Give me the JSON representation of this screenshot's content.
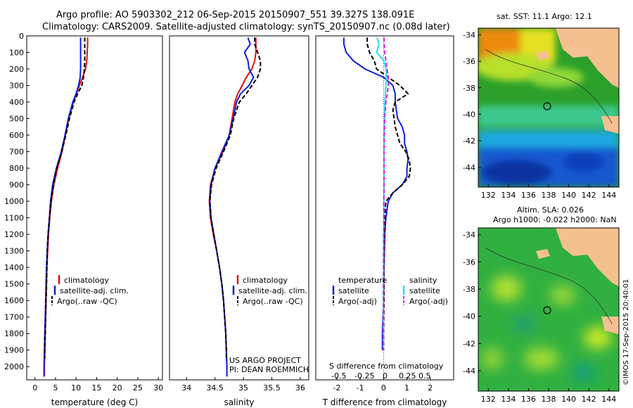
{
  "header": {
    "line1": "Argo profile: AO 5903302_212 06-Sep-2015 20150907_551 39.327S 138.091E",
    "line2": "Climatology: CARS2009. Satellite-adjusted climatology: synTS_20150907.nc (0.08d later)"
  },
  "colors": {
    "climatology": "#e01010",
    "satellite": "#1020d0",
    "argo": "#000000",
    "salinity_satellite": "#20e0f0",
    "salinity_argo": "#e020e0",
    "land": "#f4c090"
  },
  "legend1": {
    "climatology": "climatology",
    "satellite": "satellite-adj. clim.",
    "argo": "Argo(..raw -QC)"
  },
  "legend2": {
    "climatology": "climatology",
    "satellite": "satellite-adj. clim.",
    "argo": "Argo(..raw -QC)"
  },
  "legend3": {
    "temp_header": "temperature",
    "sal_header": "salinity",
    "temp_sat": "satellite",
    "temp_argo": "Argo(-adj)",
    "sal_sat": "satellite",
    "sal_argo": "Argo(-adj)"
  },
  "project": {
    "line1": "US ARGO PROJECT",
    "line2": "PI: DEAN ROEMMICH"
  },
  "sdiff_label": "S difference from climatology",
  "sdiff_ticks": [
    "-0.5",
    "-0.25",
    "0",
    "0.25",
    "0.5"
  ],
  "map1_title": "sat. SST: 11.1  Argo: 12.1",
  "map2_title1": "Altim. SLA: 0.026",
  "map2_title2": "Argo h1000: -0.022 h2000: NaN",
  "map_lon_ticks": [
    "132",
    "134",
    "136",
    "138",
    "140",
    "142",
    "144"
  ],
  "map_lat_ticks": [
    "-34",
    "-36",
    "-38",
    "-40",
    "-42",
    "-44"
  ],
  "watermark": "©IMOS 17-Sep-2015 20:40:01",
  "chart_data": [
    {
      "type": "line",
      "xlabel": "temperature (deg C)",
      "ylabel": "",
      "xlim": [
        -2,
        31
      ],
      "ylim": [
        2080,
        0
      ],
      "xticks": [
        0,
        5,
        10,
        15,
        20,
        25,
        30
      ],
      "yticks": [
        0,
        100,
        200,
        300,
        400,
        500,
        600,
        700,
        800,
        900,
        1000,
        1100,
        1200,
        1300,
        1400,
        1500,
        1600,
        1700,
        1800,
        1900,
        2000
      ],
      "series": [
        {
          "name": "climatology",
          "color": "#e01010",
          "y": [
            10,
            50,
            100,
            150,
            200,
            250,
            300,
            350,
            400,
            500,
            600,
            700,
            800,
            900,
            1000,
            1100,
            1200,
            1300,
            1400,
            1500,
            1600,
            1700,
            1800,
            1900,
            2000,
            2060
          ],
          "x": [
            12.8,
            12.8,
            12.7,
            12.6,
            12.3,
            11.6,
            10.8,
            10.1,
            9.3,
            8.2,
            7.4,
            6.6,
            5.5,
            4.6,
            4.0,
            3.6,
            3.3,
            3.1,
            2.9,
            2.8,
            2.7,
            2.6,
            2.5,
            2.4,
            2.3,
            2.3
          ]
        },
        {
          "name": "satellite-adj. clim.",
          "color": "#1020d0",
          "y": [
            10,
            50,
            100,
            150,
            200,
            250,
            300,
            350,
            400,
            500,
            600,
            700,
            800,
            900,
            1000,
            1100,
            1200,
            1300,
            1400,
            1500,
            1600,
            1700,
            1800,
            1900,
            2000,
            2060
          ],
          "x": [
            11.1,
            11.1,
            11.1,
            11.1,
            11.1,
            11.0,
            10.6,
            10.0,
            9.2,
            8.1,
            7.3,
            6.4,
            5.2,
            4.3,
            3.8,
            3.5,
            3.2,
            3.0,
            2.8,
            2.7,
            2.6,
            2.5,
            2.4,
            2.3,
            2.2,
            2.2
          ]
        },
        {
          "name": "Argo(..raw -QC)",
          "color": "#000000",
          "dashed": true,
          "y": [
            10,
            50,
            100,
            150,
            200,
            250,
            300,
            350,
            400,
            500,
            600,
            700,
            800,
            900,
            1000,
            1100,
            1200,
            1300,
            1400,
            1500,
            1600,
            1700,
            1800,
            1900,
            1950
          ],
          "x": [
            12.1,
            12.1,
            12.1,
            12.1,
            12.0,
            11.8,
            11.4,
            10.4,
            9.5,
            8.4,
            7.5,
            6.5,
            5.3,
            4.5,
            3.9,
            3.5,
            3.2,
            3.0,
            2.9,
            2.8,
            2.7,
            2.6,
            2.5,
            2.4,
            2.4
          ]
        }
      ]
    },
    {
      "type": "line",
      "xlabel": "salinity",
      "xlim": [
        33.7,
        36.15
      ],
      "ylim": [
        2080,
        0
      ],
      "xticks": [
        34,
        34.5,
        35,
        35.5,
        36
      ],
      "series": [
        {
          "name": "climatology",
          "color": "#e01010",
          "y": [
            10,
            50,
            100,
            150,
            200,
            250,
            300,
            350,
            400,
            500,
            600,
            700,
            800,
            900,
            1000,
            1100,
            1200,
            1300,
            1400,
            1500,
            1600,
            1700,
            1800,
            1900,
            2000,
            2060
          ],
          "x": [
            35.22,
            35.22,
            35.22,
            35.2,
            35.15,
            35.05,
            34.98,
            34.9,
            34.85,
            34.8,
            34.75,
            34.64,
            34.5,
            34.42,
            34.4,
            34.42,
            34.47,
            34.53,
            34.58,
            34.62,
            34.65,
            34.67,
            34.69,
            34.7,
            34.71,
            34.71
          ]
        },
        {
          "name": "satellite-adj. clim.",
          "color": "#1020d0",
          "y": [
            10,
            50,
            100,
            150,
            200,
            250,
            300,
            350,
            400,
            500,
            600,
            700,
            800,
            900,
            1000,
            1100,
            1200,
            1300,
            1400,
            1500,
            1600,
            1700,
            1800,
            1900,
            2000,
            2060
          ],
          "x": [
            35.08,
            35.12,
            35.02,
            35.08,
            35.1,
            35.18,
            35.1,
            34.95,
            34.88,
            34.82,
            34.75,
            34.62,
            34.5,
            34.43,
            34.41,
            34.43,
            34.48,
            34.53,
            34.58,
            34.62,
            34.65,
            34.67,
            34.69,
            34.7,
            34.71,
            34.71
          ]
        },
        {
          "name": "Argo(..raw -QC)",
          "color": "#000000",
          "dashed": true,
          "y": [
            10,
            50,
            100,
            150,
            200,
            250,
            300,
            350,
            400,
            500,
            600,
            700,
            800,
            900,
            1000,
            1100,
            1200,
            1300,
            1400,
            1500,
            1600,
            1700,
            1800,
            1900,
            1950
          ],
          "x": [
            35.2,
            35.2,
            35.25,
            35.3,
            35.3,
            35.25,
            35.15,
            35.05,
            34.93,
            34.83,
            34.77,
            34.65,
            34.52,
            34.44,
            34.41,
            34.43,
            34.48,
            34.53,
            34.58,
            34.62,
            34.65,
            34.67,
            34.69,
            34.7,
            34.7
          ]
        }
      ]
    },
    {
      "type": "line",
      "xlabel": "T difference from climatology",
      "xlim": [
        -2.9,
        3.0
      ],
      "ylim": [
        2080,
        0
      ],
      "xticks": [
        -2,
        -1,
        0,
        1,
        2
      ],
      "series": [
        {
          "name": "temperature satellite",
          "color": "#1020d0",
          "y": [
            10,
            50,
            100,
            150,
            200,
            250,
            300,
            350,
            400,
            450,
            500,
            550,
            600,
            650,
            700,
            750,
            800,
            850,
            900,
            950,
            1000,
            1100,
            1200,
            1400,
            1600,
            1800,
            1900
          ],
          "x": [
            -1.7,
            -1.7,
            -1.6,
            -1.3,
            -0.8,
            0.0,
            0.4,
            0.5,
            0.5,
            0.55,
            0.6,
            0.8,
            0.9,
            0.9,
            1.0,
            1.05,
            1.0,
            1.0,
            0.8,
            0.4,
            0.2,
            0.1,
            0.05,
            0.02,
            0.0,
            -0.05,
            -0.05
          ]
        },
        {
          "name": "temperature Argo(-adj)",
          "color": "#000000",
          "dashed": true,
          "y": [
            10,
            50,
            100,
            150,
            200,
            250,
            300,
            350,
            400,
            450,
            500,
            550,
            600,
            650,
            700,
            750,
            800,
            850,
            900,
            950,
            1000,
            1100,
            1200,
            1400,
            1600,
            1800,
            1900
          ],
          "x": [
            -0.7,
            -0.7,
            -0.6,
            -0.4,
            -0.3,
            0.2,
            0.7,
            1.05,
            0.5,
            0.4,
            0.45,
            0.5,
            0.6,
            0.7,
            0.95,
            1.1,
            1.15,
            1.1,
            0.8,
            0.4,
            0.1,
            0.05,
            0.05,
            0.02,
            0.02,
            0.0,
            0.0
          ]
        },
        {
          "name": "salinity satellite",
          "color": "#20e0f0",
          "y": [
            10,
            50,
            100,
            150,
            200,
            250,
            300,
            350,
            400,
            500,
            600,
            700,
            800,
            900,
            1000,
            1100,
            1200,
            1400,
            1600,
            1800,
            1900
          ],
          "x": [
            -0.28,
            -0.2,
            -0.3,
            0.01,
            0.1,
            0.13,
            0.1,
            0.08,
            0.06,
            0.04,
            0.03,
            0.02,
            0.02,
            0.02,
            0.01,
            0.01,
            0.0,
            0.0,
            -0.01,
            -0.01,
            -0.01
          ]
        },
        {
          "name": "salinity Argo(-adj)",
          "color": "#e020e0",
          "dashed": true,
          "y": [
            10,
            50,
            100,
            150,
            200,
            250,
            300,
            350,
            400,
            500,
            600,
            700,
            800,
            900,
            1000,
            1100,
            1200,
            1400,
            1600,
            1800,
            1900
          ],
          "x": [
            0.02,
            0.03,
            0.05,
            0.1,
            0.15,
            0.2,
            0.2,
            0.16,
            0.1,
            0.05,
            0.03,
            0.02,
            0.02,
            0.02,
            0.01,
            0.01,
            0.01,
            0.0,
            0.0,
            -0.01,
            -0.01
          ]
        }
      ]
    }
  ]
}
